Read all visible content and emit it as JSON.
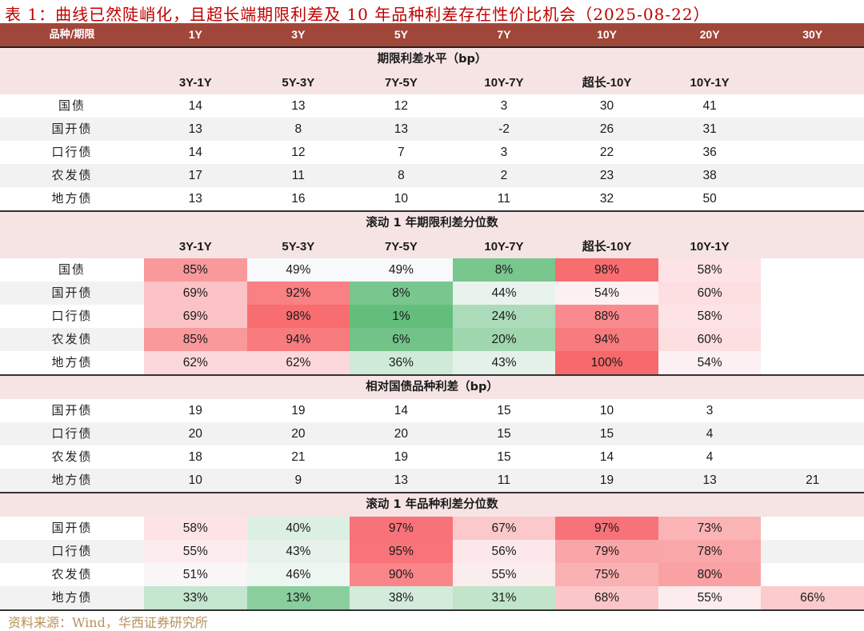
{
  "title": "表 1：曲线已然陡峭化，且超长端期限利差及 10 年品种利差存在性价比机会（2025-08-22）",
  "header": {
    "label": "品种/期限",
    "cols": [
      "1Y",
      "3Y",
      "5Y",
      "7Y",
      "10Y",
      "20Y",
      "30Y"
    ]
  },
  "colors": {
    "header_bg": "#a0473a",
    "section_bg": "#f5e4e3",
    "alt_row_bg": "#f2f2f2",
    "title_color": "#c00000",
    "source_color": "#b8915a"
  },
  "sections": [
    {
      "title": "期限利差水平（bp）",
      "subheaders": [
        "3Y-1Y",
        "5Y-3Y",
        "7Y-5Y",
        "10Y-7Y",
        "超长-10Y",
        "10Y-1Y",
        ""
      ],
      "rows": [
        {
          "label": "国债",
          "values": [
            "14",
            "13",
            "12",
            "3",
            "30",
            "41",
            ""
          ]
        },
        {
          "label": "国开债",
          "values": [
            "13",
            "8",
            "13",
            "-2",
            "26",
            "31",
            ""
          ]
        },
        {
          "label": "口行债",
          "values": [
            "14",
            "12",
            "7",
            "3",
            "22",
            "36",
            ""
          ]
        },
        {
          "label": "农发债",
          "values": [
            "17",
            "11",
            "8",
            "2",
            "23",
            "38",
            ""
          ]
        },
        {
          "label": "地方债",
          "values": [
            "13",
            "16",
            "10",
            "11",
            "32",
            "50",
            ""
          ]
        }
      ]
    },
    {
      "title": "滚动 1 年期限利差分位数",
      "subheaders": [
        "3Y-1Y",
        "5Y-3Y",
        "7Y-5Y",
        "10Y-7Y",
        "超长-10Y",
        "10Y-1Y",
        ""
      ],
      "rows": [
        {
          "label": "国债",
          "values": [
            "85%",
            "49%",
            "49%",
            "8%",
            "98%",
            "58%",
            ""
          ],
          "colors": [
            "#f9999b",
            "#f8f9fb",
            "#f8f9fb",
            "#79c68e",
            "#f86d70",
            "#fde3e5",
            "#ffffff"
          ]
        },
        {
          "label": "国开债",
          "values": [
            "69%",
            "92%",
            "8%",
            "44%",
            "54%",
            "60%",
            ""
          ],
          "colors": [
            "#fbc3c5",
            "#f98083",
            "#79c68e",
            "#e9f3ee",
            "#fcf0f2",
            "#fddfe1",
            "#ffffff"
          ]
        },
        {
          "label": "口行债",
          "values": [
            "69%",
            "98%",
            "1%",
            "24%",
            "88%",
            "58%",
            ""
          ],
          "colors": [
            "#fbc3c5",
            "#f86d70",
            "#63be7b",
            "#acdbb9",
            "#f98b8e",
            "#fde3e5",
            "#ffffff"
          ]
        },
        {
          "label": "农发债",
          "values": [
            "85%",
            "94%",
            "6%",
            "20%",
            "94%",
            "60%",
            ""
          ],
          "colors": [
            "#f9999b",
            "#f87b7e",
            "#72c388",
            "#a0d6ae",
            "#f87b7e",
            "#fddfe1",
            "#ffffff"
          ]
        },
        {
          "label": "地方债",
          "values": [
            "62%",
            "62%",
            "36%",
            "43%",
            "100%",
            "54%",
            ""
          ],
          "colors": [
            "#fcd8da",
            "#fcd8da",
            "#d0ead8",
            "#e3f1e8",
            "#f8696b",
            "#fdf0f2",
            "#ffffff"
          ]
        }
      ]
    },
    {
      "title": "相对国债品种利差（bp）",
      "rows": [
        {
          "label": "国开债",
          "values": [
            "19",
            "19",
            "14",
            "15",
            "10",
            "3",
            ""
          ]
        },
        {
          "label": "口行债",
          "values": [
            "20",
            "20",
            "20",
            "15",
            "15",
            "4",
            ""
          ]
        },
        {
          "label": "农发债",
          "values": [
            "18",
            "21",
            "19",
            "15",
            "14",
            "4",
            ""
          ]
        },
        {
          "label": "地方债",
          "values": [
            "10",
            "9",
            "13",
            "11",
            "19",
            "13",
            "21"
          ]
        }
      ]
    },
    {
      "title": "滚动 1 年品种利差分位数",
      "rows": [
        {
          "label": "国开债",
          "values": [
            "58%",
            "40%",
            "97%",
            "67%",
            "97%",
            "73%",
            ""
          ],
          "colors": [
            "#fde3e5",
            "#dcefe3",
            "#f8727a",
            "#fbc9cb",
            "#f8727a",
            "#fab4b6",
            "#ffffff"
          ]
        },
        {
          "label": "口行债",
          "values": [
            "55%",
            "43%",
            "95%",
            "56%",
            "79%",
            "78%",
            ""
          ],
          "colors": [
            "#fdecee",
            "#e6f2ea",
            "#f87479",
            "#fce8ea",
            "#faa5a8",
            "#faa7aa",
            "#f2f2f2"
          ]
        },
        {
          "label": "农发债",
          "values": [
            "51%",
            "46%",
            "90%",
            "55%",
            "75%",
            "80%",
            ""
          ],
          "colors": [
            "#faf6f8",
            "#eef6f1",
            "#f98588",
            "#fbecee",
            "#fab1b3",
            "#faa1a4",
            "#ffffff"
          ]
        },
        {
          "label": "地方债",
          "values": [
            "33%",
            "13%",
            "38%",
            "31%",
            "68%",
            "55%",
            "66%"
          ],
          "colors": [
            "#c5e6cf",
            "#8ace9d",
            "#d3ebdb",
            "#c1e4cb",
            "#fbc6c8",
            "#fcecee",
            "#fbcbcd"
          ]
        }
      ]
    }
  ],
  "source": "资料来源：Wind，华西证券研究所"
}
